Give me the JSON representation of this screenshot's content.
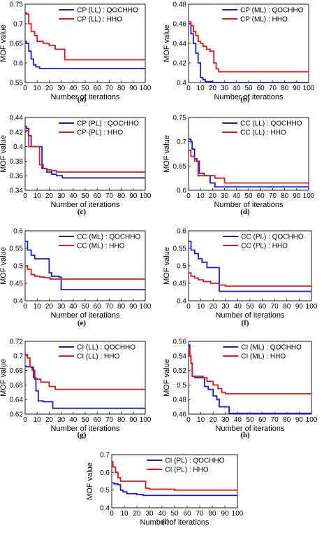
{
  "colors": {
    "qochho": "#1a1adf",
    "hho": "#e01818",
    "axis": "#000000"
  },
  "chart_data": [
    {
      "type": "line",
      "caption": "(a)",
      "ylabel": "MOF value",
      "xlabel": "Number of iterations",
      "xlim": [
        0,
        100
      ],
      "ylim": [
        0.55,
        0.75
      ],
      "xticks": [
        "0",
        "10",
        "20",
        "30",
        "40",
        "50",
        "60",
        "70",
        "80",
        "90",
        "100"
      ],
      "yticks": [
        "0.55",
        "0.6",
        "0.65",
        "0.7",
        "0.75"
      ],
      "legend_position": "top-right",
      "series": [
        {
          "name": "CP (LL) : QOCHHO",
          "color": "#1a1adf",
          "x": [
            0,
            1,
            3,
            5,
            7,
            9,
            12,
            100
          ],
          "y": [
            0.655,
            0.65,
            0.63,
            0.61,
            0.595,
            0.59,
            0.586,
            0.586
          ]
        },
        {
          "name": "CP (LL) : HHO",
          "color": "#e01818",
          "x": [
            0,
            1,
            3,
            5,
            8,
            10,
            15,
            20,
            25,
            33,
            100
          ],
          "y": [
            0.728,
            0.725,
            0.7,
            0.68,
            0.67,
            0.655,
            0.65,
            0.645,
            0.635,
            0.608,
            0.608
          ]
        }
      ]
    },
    {
      "type": "line",
      "caption": "(b)",
      "ylabel": "MOF value",
      "xlabel": "Number of iterations",
      "xlim": [
        0,
        100
      ],
      "ylim": [
        0.4,
        0.48
      ],
      "xticks": [
        "0",
        "10",
        "20",
        "30",
        "40",
        "50",
        "60",
        "70",
        "80",
        "90",
        "100"
      ],
      "yticks": [
        "0.4",
        "0.42",
        "0.44",
        "0.46",
        "0.48"
      ],
      "legend_position": "top-right",
      "series": [
        {
          "name": "CP (ML) : QOCHHO",
          "color": "#1a1adf",
          "x": [
            0,
            2,
            4,
            6,
            8,
            10,
            12,
            14,
            20,
            100
          ],
          "y": [
            0.46,
            0.45,
            0.44,
            0.43,
            0.42,
            0.405,
            0.403,
            0.401,
            0.4,
            0.4
          ]
        },
        {
          "name": "CP (ML) : HHO",
          "color": "#e01818",
          "x": [
            0,
            2,
            4,
            6,
            8,
            10,
            12,
            15,
            18,
            21,
            23,
            25,
            100
          ],
          "y": [
            0.462,
            0.458,
            0.452,
            0.448,
            0.442,
            0.44,
            0.437,
            0.434,
            0.432,
            0.42,
            0.414,
            0.411,
            0.411
          ]
        }
      ]
    },
    {
      "type": "line",
      "caption": "(c)",
      "ylabel": "MOF value",
      "xlabel": "Number of iterations",
      "xlim": [
        0,
        100
      ],
      "ylim": [
        0.34,
        0.44
      ],
      "xticks": [
        "0",
        "10",
        "20",
        "30",
        "40",
        "50",
        "60",
        "70",
        "80",
        "90",
        "100"
      ],
      "yticks": [
        "0.34",
        "0.36",
        "0.38",
        "0.4",
        "0.42",
        "0.44"
      ],
      "legend_position": "top-right",
      "series": [
        {
          "name": "CP (PL) : QOCHHO",
          "color": "#1a1adf",
          "x": [
            0,
            1,
            3,
            5,
            12,
            14,
            18,
            22,
            26,
            31,
            100
          ],
          "y": [
            0.428,
            0.425,
            0.415,
            0.4,
            0.4,
            0.37,
            0.365,
            0.362,
            0.36,
            0.357,
            0.357
          ]
        },
        {
          "name": "CP (PL) : HHO",
          "color": "#e01818",
          "x": [
            0,
            3,
            10,
            12,
            15,
            18,
            22,
            26,
            100
          ],
          "y": [
            0.422,
            0.4,
            0.4,
            0.375,
            0.37,
            0.368,
            0.367,
            0.365,
            0.365
          ]
        }
      ]
    },
    {
      "type": "line",
      "caption": "(d)",
      "ylabel": "MOF value",
      "xlabel": "Number of iterations",
      "xlim": [
        0,
        100
      ],
      "ylim": [
        0.6,
        0.75
      ],
      "xticks": [
        "0",
        "10",
        "20",
        "30",
        "40",
        "50",
        "60",
        "70",
        "80",
        "90",
        "100"
      ],
      "yticks": [
        "0.6",
        "0.65",
        "0.7",
        "0.75"
      ],
      "legend_position": "top-right",
      "series": [
        {
          "name": "CC (LL) : QOCHHO",
          "color": "#1a1adf",
          "x": [
            0,
            2,
            3,
            5,
            7,
            9,
            13,
            18,
            22,
            100
          ],
          "y": [
            0.705,
            0.7,
            0.685,
            0.665,
            0.66,
            0.635,
            0.63,
            0.615,
            0.607,
            0.607
          ]
        },
        {
          "name": "CC (LL) : HHO",
          "color": "#e01818",
          "x": [
            0,
            2,
            5,
            8,
            20,
            22,
            30,
            100
          ],
          "y": [
            0.682,
            0.67,
            0.66,
            0.63,
            0.63,
            0.625,
            0.615,
            0.615
          ]
        }
      ]
    },
    {
      "type": "line",
      "caption": "(e)",
      "ylabel": "MOF value",
      "xlabel": "Number of iterations",
      "xlim": [
        0,
        100
      ],
      "ylim": [
        0.4,
        0.6
      ],
      "xticks": [
        "0",
        "10",
        "20",
        "30",
        "40",
        "50",
        "60",
        "70",
        "80",
        "90",
        "100"
      ],
      "yticks": [
        "0.4",
        "0.45",
        "0.5",
        "0.55",
        "0.6"
      ],
      "legend_position": "top-right",
      "series": [
        {
          "name": "CC (ML) : QOCHHO",
          "color": "#1a1adf",
          "x": [
            0,
            2,
            5,
            8,
            20,
            22,
            28,
            30,
            100
          ],
          "y": [
            0.57,
            0.545,
            0.53,
            0.52,
            0.48,
            0.47,
            0.468,
            0.432,
            0.432
          ]
        },
        {
          "name": "CC (ML) : HHO",
          "color": "#e01818",
          "x": [
            0,
            2,
            5,
            8,
            12,
            16,
            21,
            100
          ],
          "y": [
            0.5,
            0.49,
            0.475,
            0.47,
            0.468,
            0.466,
            0.462,
            0.462
          ]
        }
      ]
    },
    {
      "type": "line",
      "caption": "(f)",
      "ylabel": "MOF value",
      "xlabel": "Number of iterations",
      "xlim": [
        0,
        100
      ],
      "ylim": [
        0.4,
        0.6
      ],
      "xticks": [
        "0",
        "10",
        "20",
        "30",
        "40",
        "50",
        "60",
        "70",
        "80",
        "90",
        "100"
      ],
      "yticks": [
        "0.4",
        "0.45",
        "0.5",
        "0.55",
        "0.6"
      ],
      "legend_position": "top-right",
      "series": [
        {
          "name": "CC (PL) : QOCHHO",
          "color": "#1a1adf",
          "x": [
            0,
            2,
            5,
            8,
            11,
            15,
            22,
            25,
            100
          ],
          "y": [
            0.57,
            0.545,
            0.535,
            0.52,
            0.51,
            0.495,
            0.495,
            0.427,
            0.427
          ]
        },
        {
          "name": "CC (PL) : HHO",
          "color": "#e01818",
          "x": [
            0,
            2,
            5,
            8,
            12,
            18,
            25,
            30,
            100
          ],
          "y": [
            0.48,
            0.47,
            0.465,
            0.46,
            0.455,
            0.45,
            0.445,
            0.442,
            0.442
          ]
        }
      ]
    },
    {
      "type": "line",
      "caption": "(g)",
      "ylabel": "MOF value",
      "xlabel": "Number of iterations",
      "xlim": [
        0,
        100
      ],
      "ylim": [
        0.62,
        0.72
      ],
      "xticks": [
        "0",
        "10",
        "20",
        "30",
        "40",
        "50",
        "60",
        "70",
        "80",
        "90",
        "100"
      ],
      "yticks": [
        "0.62",
        "0.64",
        "0.66",
        "0.68",
        "0.7",
        "0.72"
      ],
      "legend_position": "top-right",
      "series": [
        {
          "name": "CI (LL) : QOCHHO",
          "color": "#1a1adf",
          "x": [
            0,
            1,
            5,
            7,
            9,
            11,
            15,
            20,
            23,
            100
          ],
          "y": [
            0.686,
            0.685,
            0.684,
            0.67,
            0.652,
            0.638,
            0.637,
            0.637,
            0.628,
            0.628
          ]
        },
        {
          "name": "CI (LL) : HHO",
          "color": "#e01818",
          "x": [
            0,
            2,
            4,
            6,
            8,
            13,
            20,
            25,
            100
          ],
          "y": [
            0.702,
            0.697,
            0.685,
            0.68,
            0.668,
            0.664,
            0.658,
            0.654,
            0.654
          ]
        }
      ]
    },
    {
      "type": "line",
      "caption": "(h)",
      "ylabel": "MOF value",
      "xlabel": "Number of iterations",
      "xlim": [
        0,
        100
      ],
      "ylim": [
        0.46,
        0.56
      ],
      "xticks": [
        "0",
        "10",
        "20",
        "30",
        "40",
        "50",
        "60",
        "70",
        "80",
        "90",
        "100"
      ],
      "yticks": [
        "0.46",
        "0.48",
        "0.5",
        "0.52",
        "0.54",
        "0.56"
      ],
      "legend_position": "top-right",
      "series": [
        {
          "name": "CI (ML) : QOCHHO",
          "color": "#1a1adf",
          "x": [
            0,
            1,
            2,
            3,
            5,
            10,
            13,
            16,
            20,
            23,
            25,
            33,
            100
          ],
          "y": [
            0.555,
            0.54,
            0.53,
            0.512,
            0.51,
            0.51,
            0.498,
            0.494,
            0.485,
            0.48,
            0.47,
            0.461,
            0.461
          ]
        },
        {
          "name": "CI (ML) : HHO",
          "color": "#e01818",
          "x": [
            0,
            1,
            2,
            3,
            8,
            12,
            15,
            20,
            24,
            27,
            30,
            100
          ],
          "y": [
            0.55,
            0.54,
            0.53,
            0.512,
            0.512,
            0.51,
            0.505,
            0.5,
            0.495,
            0.49,
            0.488,
            0.488
          ]
        }
      ]
    },
    {
      "type": "line",
      "caption": "(i)",
      "ylabel": "MOF value",
      "xlabel": "Number of iterations",
      "xlim": [
        0,
        100
      ],
      "ylim": [
        0.4,
        0.7
      ],
      "xticks": [
        "0",
        "10",
        "20",
        "30",
        "40",
        "50",
        "60",
        "70",
        "80",
        "90",
        "100"
      ],
      "yticks": [
        "0.4",
        "0.5",
        "0.6",
        "0.7"
      ],
      "legend_position": "top-right",
      "series": [
        {
          "name": "CI (PL) : QOCHHO",
          "color": "#1a1adf",
          "x": [
            0,
            2,
            5,
            7,
            9,
            12,
            20,
            25,
            100
          ],
          "y": [
            0.54,
            0.535,
            0.53,
            0.5,
            0.49,
            0.48,
            0.475,
            0.47,
            0.47
          ]
        },
        {
          "name": "CI (PL) : HHO",
          "color": "#e01818",
          "x": [
            0,
            1,
            3,
            5,
            7,
            12,
            27,
            30,
            50,
            100
          ],
          "y": [
            0.66,
            0.63,
            0.6,
            0.57,
            0.55,
            0.55,
            0.51,
            0.505,
            0.5,
            0.5
          ]
        }
      ]
    }
  ]
}
